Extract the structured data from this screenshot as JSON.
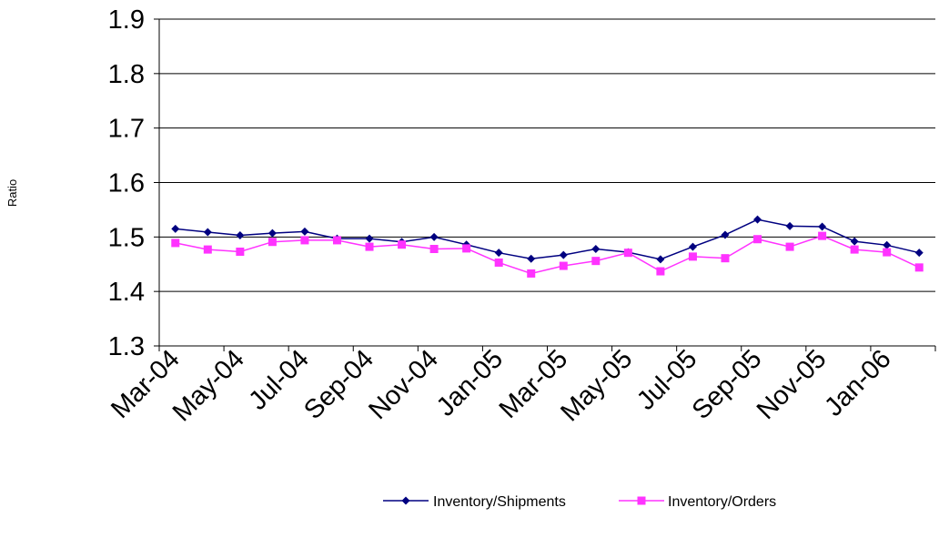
{
  "chart_data": {
    "type": "line",
    "ylabel": "Ratio",
    "ylim": [
      1.3,
      1.9
    ],
    "yticks": [
      "1.3",
      "1.4",
      "1.5",
      "1.6",
      "1.7",
      "1.8",
      "1.9"
    ],
    "grid": "horizontal",
    "legend_position": "bottom",
    "x": [
      "Mar-04",
      "Apr-04",
      "May-04",
      "Jun-04",
      "Jul-04",
      "Aug-04",
      "Sep-04",
      "Oct-04",
      "Nov-04",
      "Dec-04",
      "Jan-05",
      "Feb-05",
      "Mar-05",
      "Apr-05",
      "May-05",
      "Jun-05",
      "Jul-05",
      "Aug-05",
      "Sep-05",
      "Oct-05",
      "Nov-05",
      "Dec-05",
      "Jan-06",
      "Feb-06"
    ],
    "xtick_labels": [
      "Mar-04",
      "May-04",
      "Jul-04",
      "Sep-04",
      "Nov-04",
      "Jan-05",
      "Mar-05",
      "May-05",
      "Jul-05",
      "Sep-05",
      "Nov-05",
      "Jan-06"
    ],
    "series": [
      {
        "name": "Inventory/Shipments",
        "color": "#000080",
        "marker": "diamond",
        "values": [
          1.515,
          1.509,
          1.503,
          1.507,
          1.51,
          1.497,
          1.497,
          1.491,
          1.5,
          1.486,
          1.471,
          1.46,
          1.467,
          1.478,
          1.472,
          1.459,
          1.482,
          1.504,
          1.532,
          1.52,
          1.519,
          1.492,
          1.485,
          1.471
        ]
      },
      {
        "name": "Inventory/Orders",
        "color": "#FF33FF",
        "marker": "square",
        "values": [
          1.489,
          1.477,
          1.473,
          1.491,
          1.494,
          1.494,
          1.482,
          1.486,
          1.478,
          1.479,
          1.453,
          1.433,
          1.447,
          1.456,
          1.471,
          1.437,
          1.464,
          1.461,
          1.496,
          1.482,
          1.502,
          1.477,
          1.472,
          1.444
        ]
      }
    ]
  }
}
